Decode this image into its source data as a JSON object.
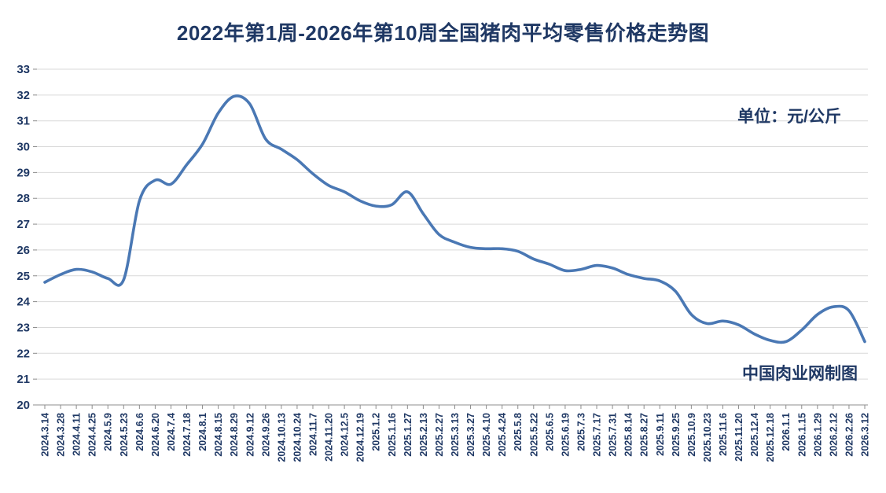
{
  "chart_data": {
    "type": "line",
    "title": "2022年第1周-2026年第10周全国猪肉平均零售价格走势图",
    "unit_label": "单位：元/公斤",
    "credit": "中国肉业网制图",
    "ylabel": "",
    "xlabel": "",
    "ylim": [
      20,
      33
    ],
    "ytick_step": 1,
    "grid": true,
    "legend": "none",
    "line_color": "#4a78b4",
    "label_color": "#1f3864",
    "grid_color": "#d9d9d9",
    "axis_color": "#8c8c8c",
    "categories": [
      "2024.3.14",
      "2024.3.28",
      "2024.4.11",
      "2024.4.25",
      "2024.5.9",
      "2024.5.23",
      "2024.6.6",
      "2024.6.20",
      "2024.7.4",
      "2024.7.18",
      "2024.8.1",
      "2024.8.15",
      "2024.8.29",
      "2024.9.12",
      "2024.9.26",
      "2024.10.13",
      "2024.10.24",
      "2024.11.7",
      "2024.11.20",
      "2024.12.5",
      "2024.12.19",
      "2025.1.2",
      "2025.1.16",
      "2025.1.27",
      "2025.2.13",
      "2025.2.27",
      "2025.3.13",
      "2025.3.27",
      "2025.4.10",
      "2025.4.24",
      "2025.5.8",
      "2025.5.22",
      "2025.6.5",
      "2025.6.19",
      "2025.7.3",
      "2025.7.17",
      "2025.7.31",
      "2025.8.14",
      "2025.8.27",
      "2025.9.11",
      "2025.9.25",
      "2025.10.9",
      "2025.10.23",
      "2025.11.6",
      "2025.11.20",
      "2025.12.4",
      "2025.12.18",
      "2026.1.1",
      "2026.1.15",
      "2026.1.29",
      "2026.2.12",
      "2026.2.26",
      "2026.3.12"
    ],
    "values": [
      24.75,
      25.05,
      25.25,
      25.15,
      24.9,
      24.85,
      27.9,
      28.7,
      28.55,
      29.3,
      30.1,
      31.3,
      31.95,
      31.65,
      30.3,
      29.9,
      29.5,
      28.95,
      28.5,
      28.25,
      27.9,
      27.7,
      27.75,
      28.25,
      27.4,
      26.6,
      26.3,
      26.1,
      26.05,
      26.05,
      25.95,
      25.65,
      25.45,
      25.2,
      25.25,
      25.4,
      25.3,
      25.05,
      24.9,
      24.8,
      24.4,
      23.5,
      23.15,
      23.25,
      23.1,
      22.75,
      22.5,
      22.45,
      22.9,
      23.5,
      23.8,
      23.65,
      22.45
    ]
  }
}
